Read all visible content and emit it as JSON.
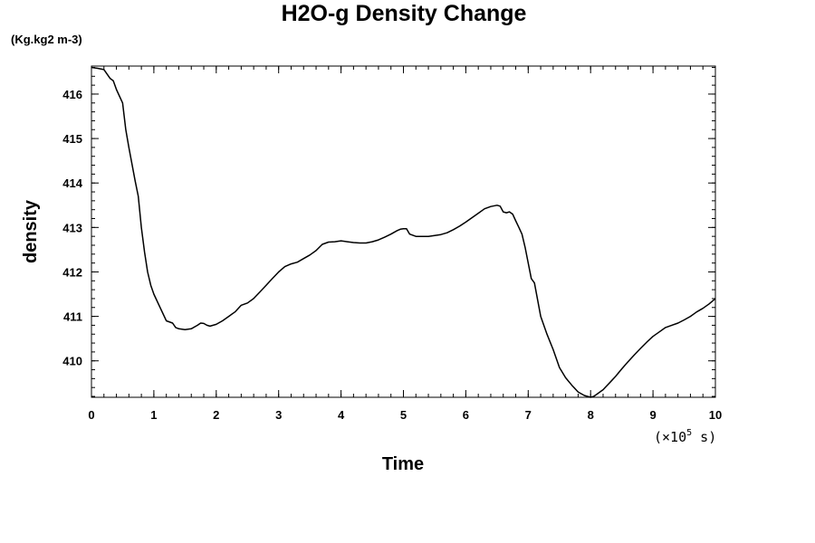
{
  "chart_data": {
    "type": "line",
    "title": "H2O-g Density Change",
    "unit_label": "(Kg.kg2 m-3)",
    "xlabel": "Time",
    "ylabel": "density",
    "x_scale_prefix": "(×10",
    "x_scale_exp": "5",
    "x_scale_suffix": " s)",
    "xlim": [
      0,
      10
    ],
    "ylim": [
      409.18,
      416.63
    ],
    "x_ticks": [
      0,
      1,
      2,
      3,
      4,
      5,
      6,
      7,
      8,
      9,
      10
    ],
    "x_tick_labels": [
      "0",
      "1",
      "2",
      "3",
      "4",
      "5",
      "6",
      "7",
      "8",
      "9",
      "10"
    ],
    "y_ticks": [
      410,
      411,
      412,
      413,
      414,
      415,
      416
    ],
    "y_tick_labels": [
      "410",
      "411",
      "412",
      "413",
      "414",
      "415",
      "416"
    ],
    "x_minor_step": 0.2,
    "y_minor_step": 0.2,
    "grid": false,
    "series": [
      {
        "x": [
          0,
          0.1,
          0.2,
          0.3,
          0.35,
          0.4,
          0.5,
          0.55,
          0.6,
          0.7,
          0.75,
          0.8,
          0.85,
          0.9,
          0.95,
          1.0,
          1.1,
          1.2,
          1.3,
          1.35,
          1.4,
          1.5,
          1.6,
          1.7,
          1.75,
          1.8,
          1.85,
          1.9,
          2.0,
          2.1,
          2.2,
          2.3,
          2.4,
          2.5,
          2.6,
          2.7,
          2.8,
          2.9,
          3.0,
          3.1,
          3.2,
          3.3,
          3.4,
          3.5,
          3.6,
          3.7,
          3.8,
          3.9,
          4.0,
          4.1,
          4.2,
          4.3,
          4.4,
          4.5,
          4.6,
          4.7,
          4.8,
          4.9,
          4.95,
          5.0,
          5.05,
          5.1,
          5.2,
          5.3,
          5.4,
          5.5,
          5.6,
          5.7,
          5.8,
          5.9,
          6.0,
          6.1,
          6.2,
          6.3,
          6.4,
          6.5,
          6.55,
          6.6,
          6.65,
          6.7,
          6.75,
          6.8,
          6.85,
          6.9,
          6.95,
          7.0,
          7.05,
          7.1,
          7.2,
          7.3,
          7.4,
          7.5,
          7.6,
          7.7,
          7.8,
          7.9,
          8.0,
          8.05,
          8.1,
          8.15,
          8.2,
          8.3,
          8.4,
          8.5,
          8.6,
          8.7,
          8.8,
          8.9,
          9.0,
          9.1,
          9.2,
          9.3,
          9.4,
          9.5,
          9.6,
          9.7,
          9.8,
          9.9,
          10.0
        ],
        "y": [
          416.6,
          416.58,
          416.55,
          416.35,
          416.3,
          416.1,
          415.8,
          415.2,
          414.8,
          414.05,
          413.7,
          413.0,
          412.45,
          412.0,
          411.7,
          411.5,
          411.2,
          410.9,
          410.85,
          410.75,
          410.72,
          410.7,
          410.72,
          410.8,
          410.85,
          410.84,
          410.8,
          410.78,
          410.82,
          410.9,
          411.0,
          411.1,
          411.25,
          411.3,
          411.4,
          411.55,
          411.7,
          411.85,
          412.0,
          412.12,
          412.18,
          412.22,
          412.3,
          412.38,
          412.48,
          412.62,
          412.67,
          412.68,
          412.7,
          412.68,
          412.66,
          412.65,
          412.65,
          412.68,
          412.72,
          412.78,
          412.85,
          412.93,
          412.96,
          412.97,
          412.97,
          412.85,
          412.8,
          412.8,
          412.8,
          412.82,
          412.84,
          412.88,
          412.95,
          413.03,
          413.12,
          413.22,
          413.32,
          413.42,
          413.47,
          413.5,
          413.48,
          413.35,
          413.33,
          413.35,
          413.3,
          413.15,
          413.0,
          412.85,
          412.55,
          412.2,
          411.85,
          411.75,
          411.0,
          410.6,
          410.25,
          409.85,
          409.62,
          409.45,
          409.3,
          409.22,
          409.18,
          409.2,
          409.25,
          409.3,
          409.35,
          409.5,
          409.65,
          409.82,
          409.98,
          410.13,
          410.28,
          410.42,
          410.55,
          410.65,
          410.75,
          410.8,
          410.85,
          410.92,
          411.0,
          411.1,
          411.18,
          411.28,
          411.4
        ]
      }
    ]
  }
}
